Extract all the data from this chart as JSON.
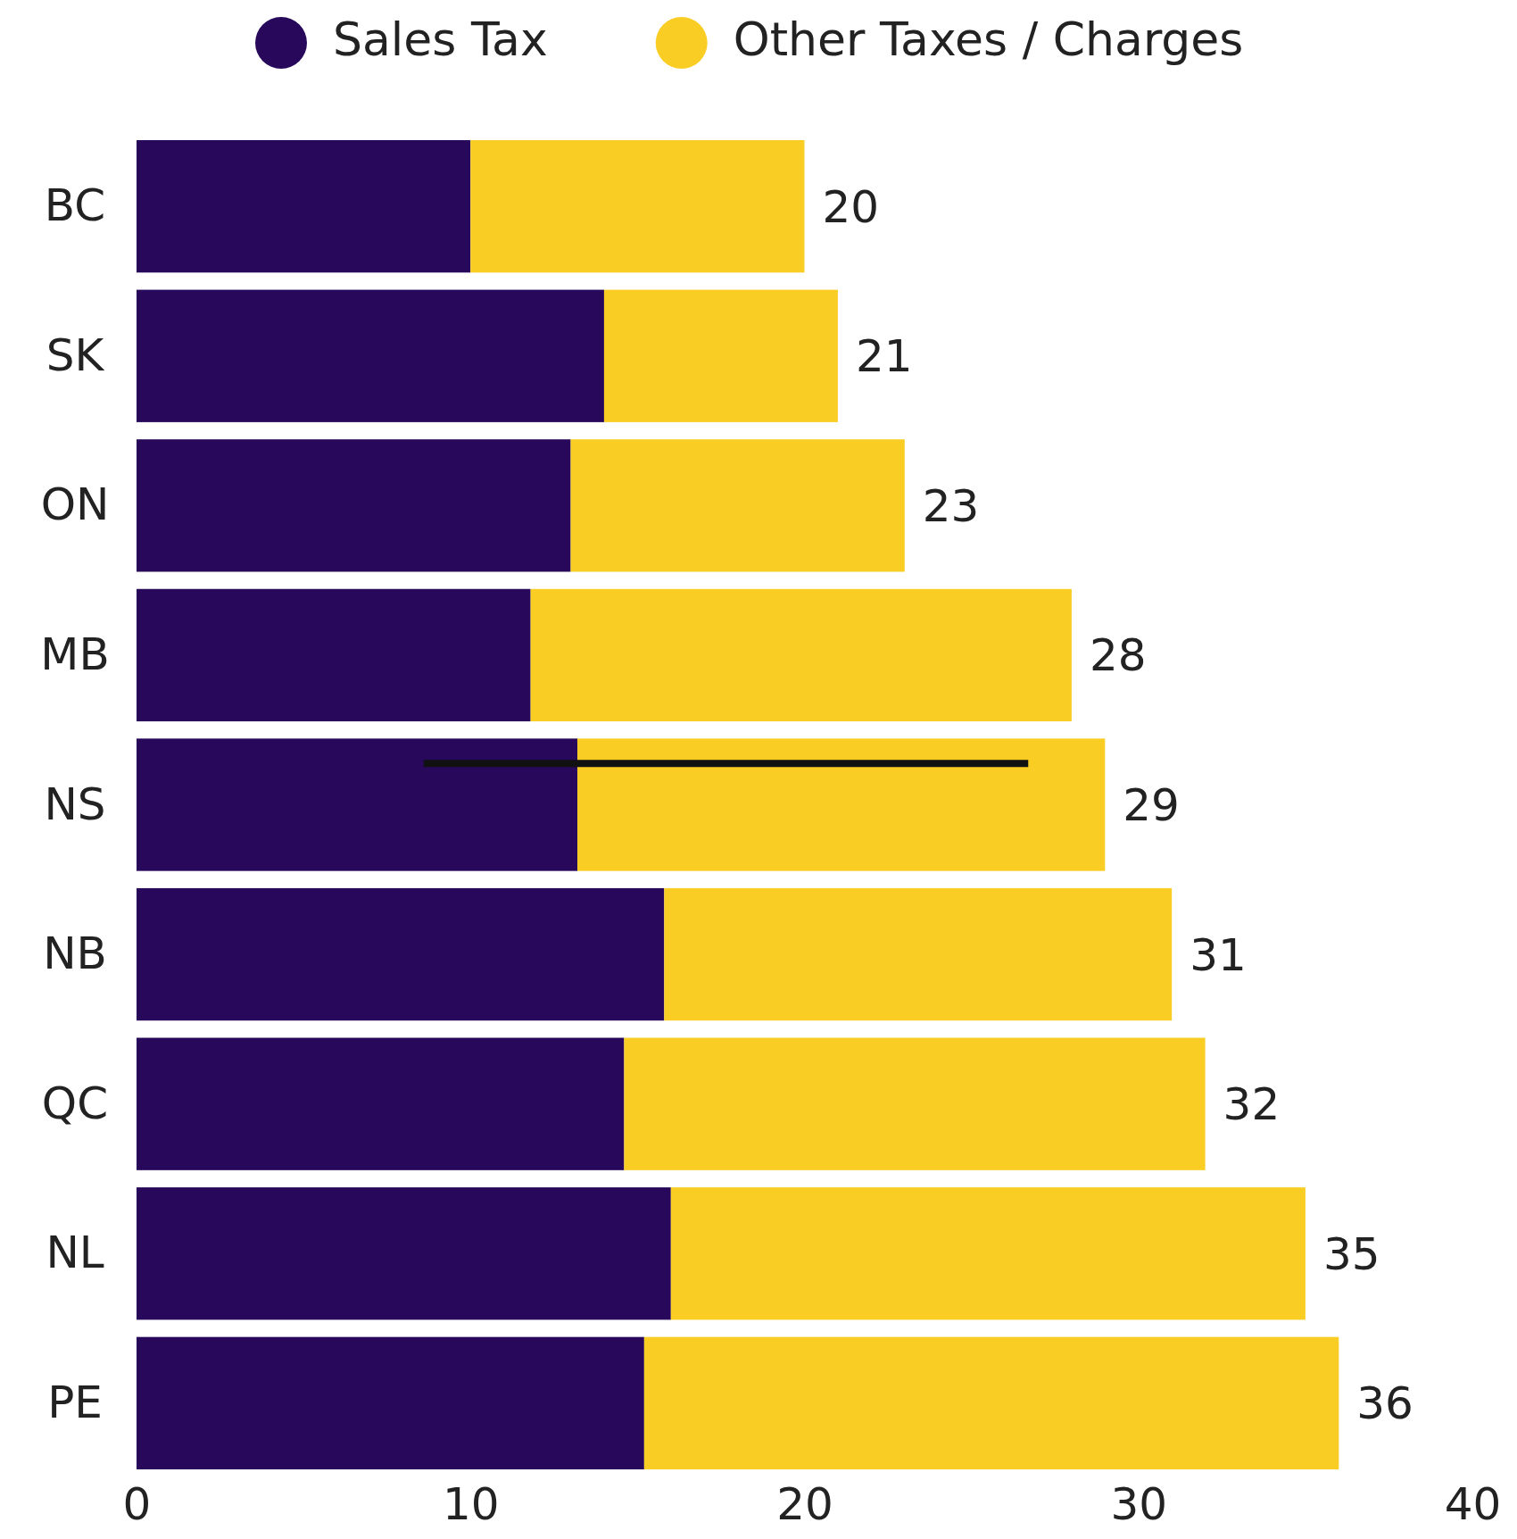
{
  "chart_data": {
    "type": "bar",
    "orientation": "horizontal",
    "stacked": true,
    "categories": [
      "BC",
      "SK",
      "ON",
      "MB",
      "NS",
      "NB",
      "QC",
      "NL",
      "PE"
    ],
    "series": [
      {
        "name": "Sales Tax",
        "color": "#27085a",
        "values": [
          10,
          14,
          13,
          11.8,
          13.2,
          15.8,
          14.6,
          16,
          15.2
        ],
        "errors": [
          null,
          null,
          null,
          null,
          [
            8.6,
            26.7
          ],
          null,
          null,
          null,
          null
        ]
      },
      {
        "name": "Other Taxes / Charges",
        "color": "#f9cd23",
        "values": [
          10,
          7,
          10,
          16.2,
          15.8,
          15.2,
          17.4,
          19,
          20.8
        ]
      }
    ],
    "totals": [
      "20",
      "21",
      "23",
      "28",
      "29",
      "31",
      "32",
      "35",
      "36"
    ],
    "xlim": [
      0,
      40
    ],
    "xticks": [
      0,
      10,
      20,
      30,
      40
    ],
    "legend": "top",
    "grid": false
  }
}
